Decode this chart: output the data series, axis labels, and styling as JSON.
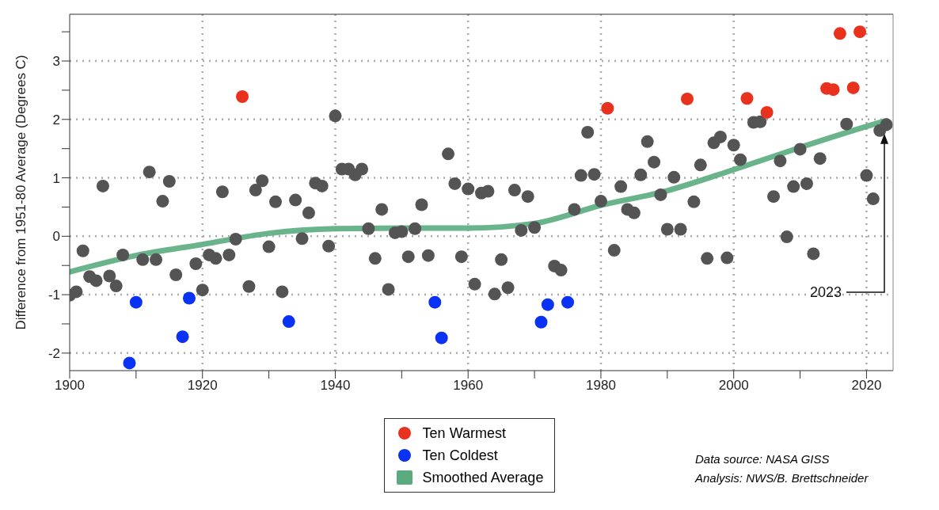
{
  "chart_data": {
    "type": "scatter",
    "ylabel": "Difference from 1951-80 Average (Degrees C)",
    "xlim": [
      1900,
      2024
    ],
    "xticks": [
      1900,
      {
        "value": 1910,
        "label": null
      },
      1920,
      {
        "value": 1930,
        "label": null
      },
      1940,
      {
        "value": 1950,
        "label": null
      },
      1960,
      {
        "value": 1970,
        "label": null
      },
      1980,
      {
        "value": 1990,
        "label": null
      },
      2000,
      {
        "value": 2010,
        "label": null
      },
      2020
    ],
    "ylim": [
      -2.3,
      3.8
    ],
    "yticks": [
      -2,
      {
        "value": -1.5,
        "label": null
      },
      -1,
      {
        "value": -0.5,
        "label": null
      },
      0,
      {
        "value": 0.5,
        "label": null
      },
      1,
      {
        "value": 1.5,
        "label": null
      },
      2,
      {
        "value": 2.5,
        "label": null
      },
      3,
      {
        "value": 3.5,
        "label": null
      }
    ],
    "grid": true,
    "legend": "bottom",
    "marker": "circle",
    "series": [
      {
        "color": "#545454",
        "x": [
          1900,
          1901,
          1902,
          1903,
          1904,
          1905,
          1906,
          1907,
          1908,
          1911,
          1912,
          1913,
          1914,
          1915,
          1916,
          1919,
          1920,
          1921,
          1922,
          1923,
          1924,
          1925,
          1927,
          1928,
          1929,
          1930,
          1931,
          1932,
          1934,
          1935,
          1936,
          1937,
          1938,
          1939,
          1940,
          1941,
          1942,
          1943,
          1944,
          1945,
          1946,
          1947,
          1948,
          1949,
          1950,
          1951,
          1952,
          1953,
          1954,
          1957,
          1958,
          1959,
          1960,
          1961,
          1962,
          1963,
          1964,
          1965,
          1966,
          1967,
          1968,
          1969,
          1970,
          1973,
          1974,
          1976,
          1977,
          1978,
          1979,
          1980,
          1982,
          1983,
          1984,
          1985,
          1986,
          1987,
          1988,
          1989,
          1990,
          1991,
          1992,
          1994,
          1995,
          1996,
          1997,
          1998,
          1999,
          2000,
          2001,
          2003,
          2004,
          2006,
          2007,
          2008,
          2009,
          2010,
          2011,
          2012,
          2013,
          2017,
          2020,
          2021,
          2022,
          2023
        ],
        "values": [
          -1.01,
          -0.95,
          -0.25,
          -0.69,
          -0.76,
          0.86,
          -0.68,
          -0.85,
          -0.32,
          -0.4,
          1.1,
          -0.4,
          0.6,
          0.94,
          -0.66,
          -0.47,
          -0.92,
          -0.32,
          -0.38,
          0.76,
          -0.32,
          -0.05,
          -0.86,
          0.79,
          0.95,
          -0.18,
          0.59,
          -0.95,
          0.62,
          -0.04,
          0.4,
          0.91,
          0.86,
          -0.17,
          2.06,
          1.15,
          1.15,
          1.05,
          1.15,
          0.13,
          -0.38,
          0.46,
          -0.91,
          0.06,
          0.08,
          -0.35,
          0.13,
          0.54,
          -0.33,
          1.41,
          0.9,
          -0.35,
          0.81,
          -0.82,
          0.74,
          0.77,
          -0.99,
          -0.4,
          -0.88,
          0.79,
          0.1,
          0.68,
          0.15,
          -0.51,
          -0.58,
          0.46,
          1.04,
          1.78,
          1.06,
          0.6,
          -0.24,
          0.85,
          0.46,
          0.4,
          1.05,
          1.62,
          1.27,
          0.71,
          0.12,
          1.01,
          0.12,
          0.59,
          1.22,
          -0.38,
          1.6,
          1.7,
          -0.37,
          1.56,
          1.31,
          1.95,
          1.96,
          0.68,
          1.29,
          -0.01,
          0.85,
          1.49,
          0.9,
          -0.3,
          1.33,
          1.92,
          1.04,
          0.64,
          1.81,
          1.91
        ]
      },
      {
        "name": "Ten Warmest",
        "color": "#e8321e",
        "x": [
          1926,
          1981,
          1993,
          2002,
          2005,
          2014,
          2015,
          2016,
          2018,
          2019
        ],
        "values": [
          2.39,
          2.19,
          2.35,
          2.36,
          2.12,
          2.53,
          2.51,
          3.47,
          2.54,
          3.5
        ]
      },
      {
        "name": "Ten Coldest",
        "color": "#0a32f5",
        "x": [
          1909,
          1910,
          1917,
          1918,
          1933,
          1955,
          1956,
          1971,
          1972,
          1975
        ],
        "values": [
          -2.17,
          -1.13,
          -1.72,
          -1.06,
          -1.46,
          -1.13,
          -1.74,
          -1.47,
          -1.17,
          -1.13
        ]
      },
      {
        "type": "line",
        "name": "Smoothed Average",
        "color": "#5aac7f",
        "line_style": "solid",
        "marker": "none",
        "x": [
          1900,
          1910,
          1920,
          1930,
          1940,
          1950,
          1960,
          1970,
          1980,
          1990,
          2000,
          2010,
          2020,
          2023
        ],
        "values": [
          -0.61,
          -0.33,
          -0.14,
          0.05,
          0.13,
          0.14,
          0.14,
          0.22,
          0.53,
          0.78,
          1.14,
          1.52,
          1.88,
          1.98
        ]
      }
    ],
    "annotations": [
      "2023",
      "Data source: NASA GISS",
      "Analysis: NWS/B. Brettschneider"
    ]
  }
}
